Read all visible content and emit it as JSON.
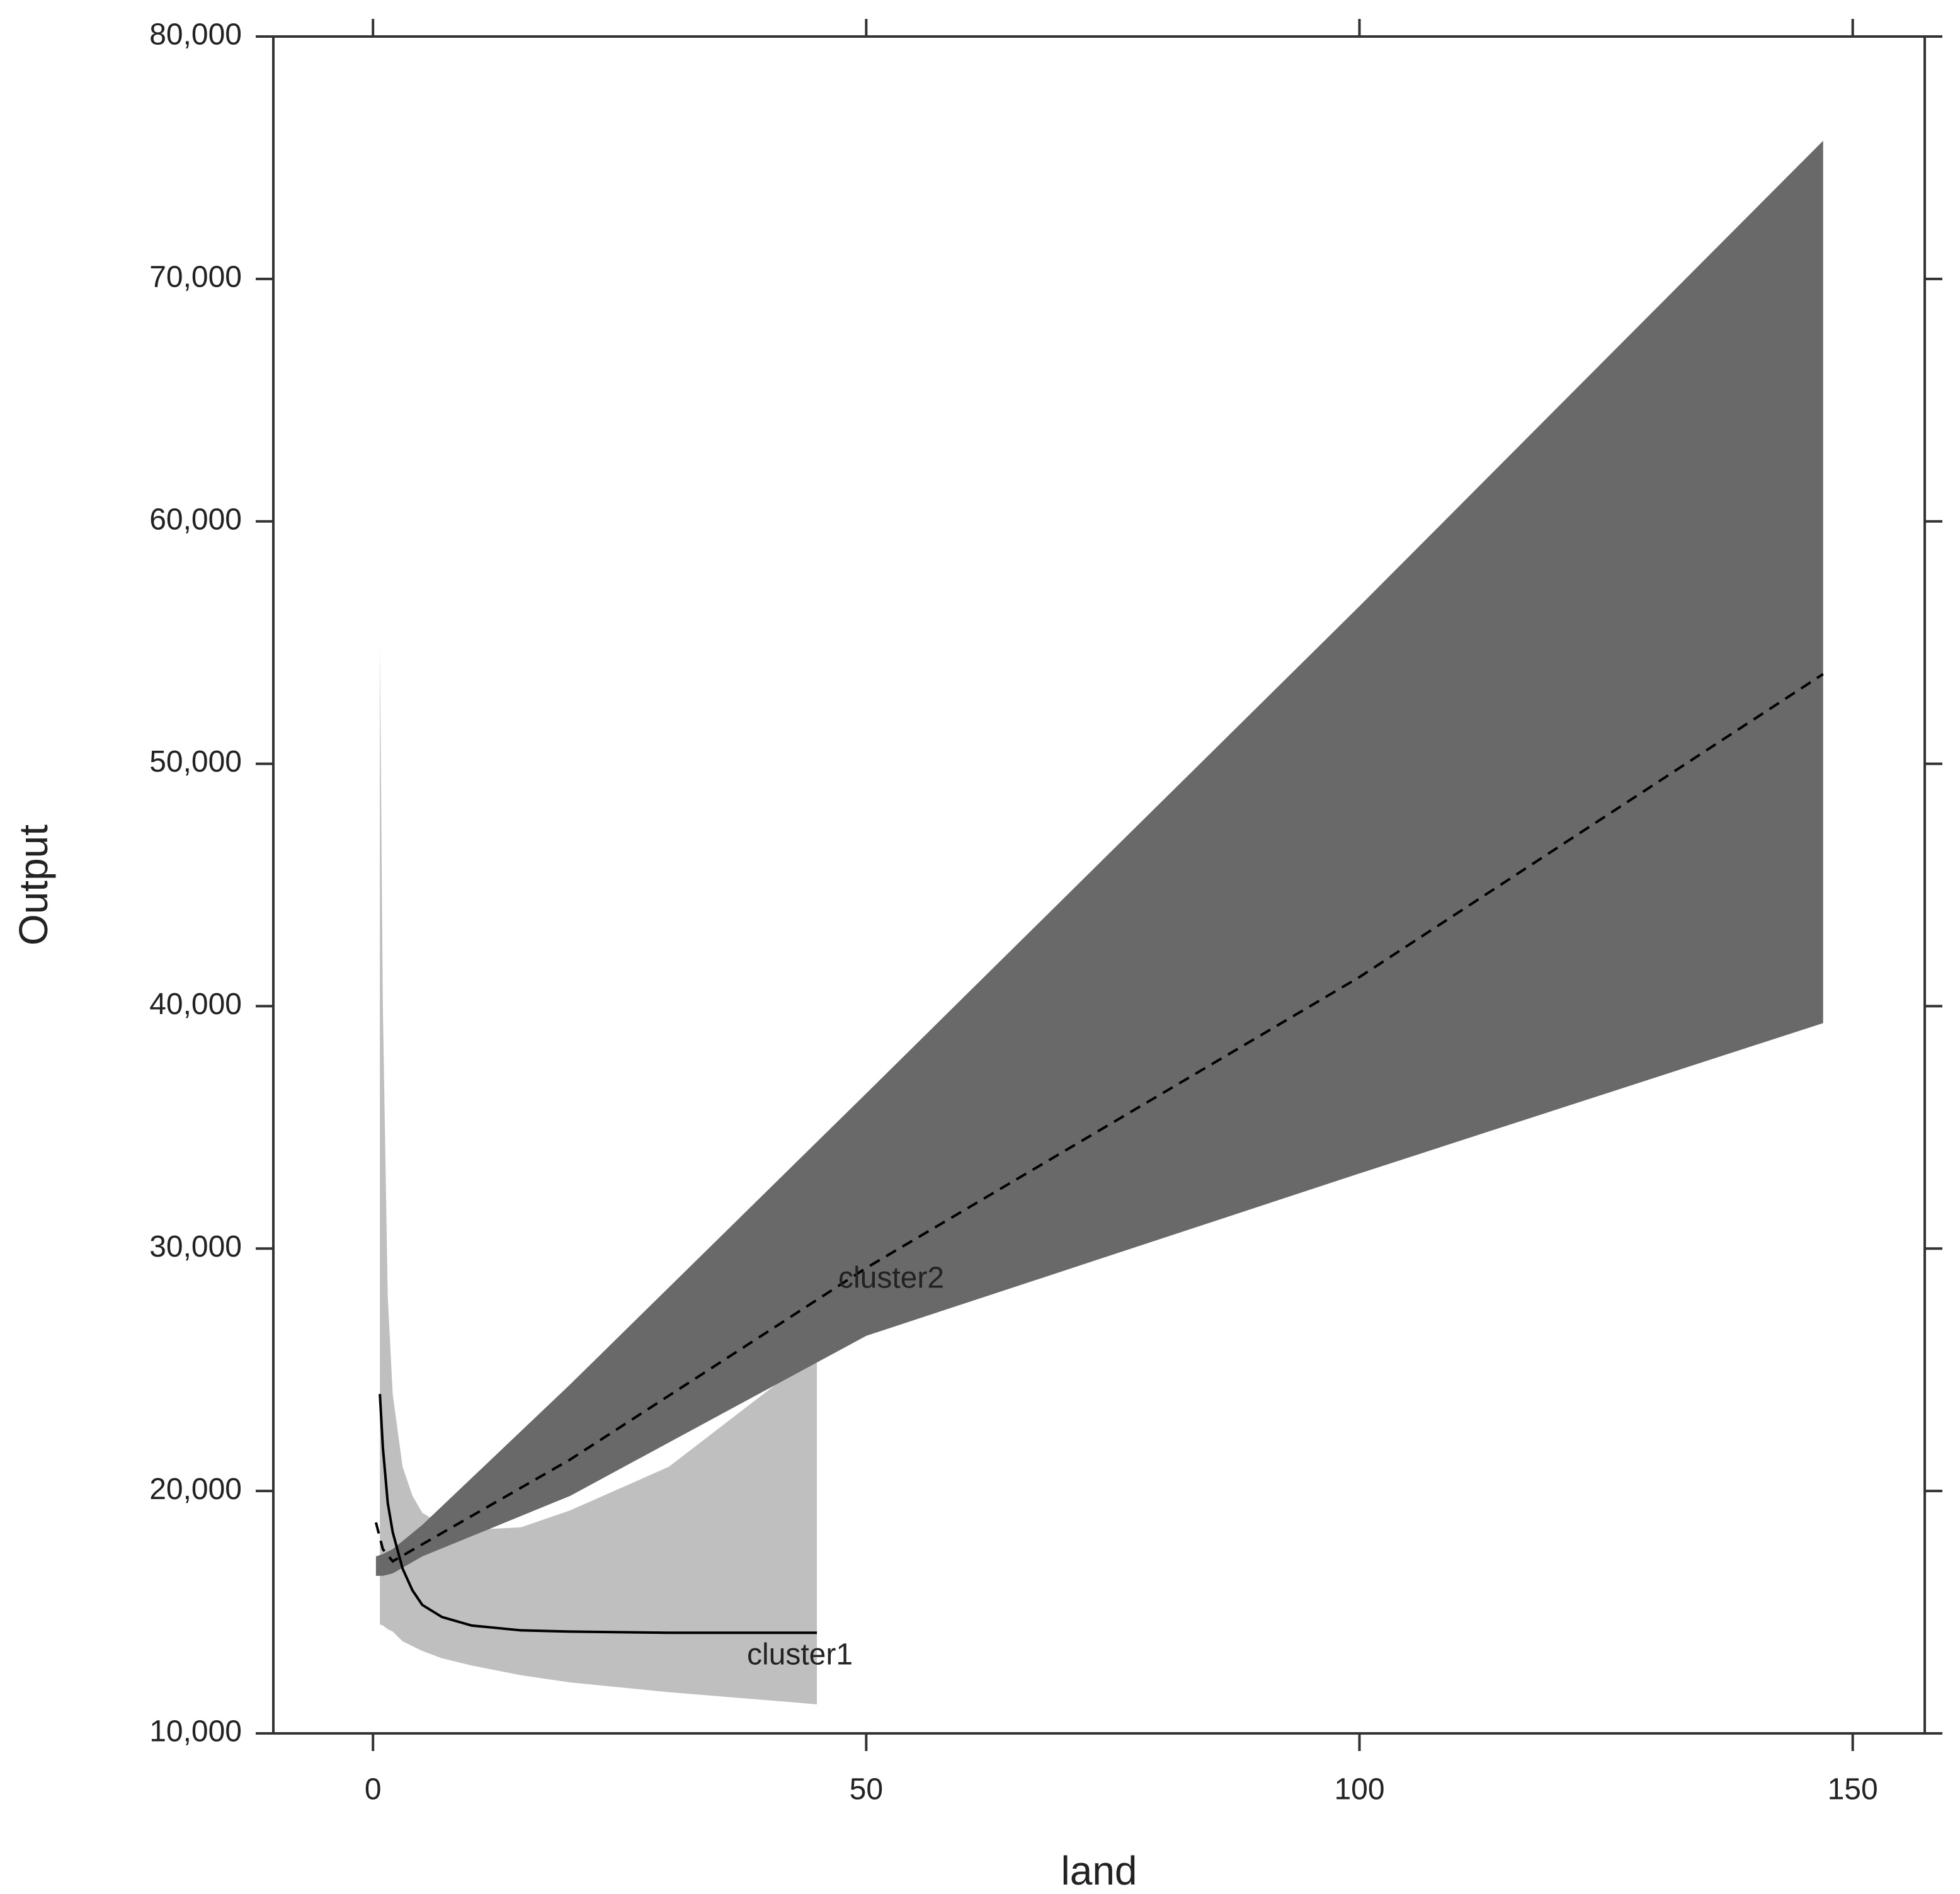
{
  "chart_data": {
    "type": "line",
    "x_label": "land",
    "y_label": "Output",
    "xlim": [
      -10.1,
      157.3
    ],
    "ylim": [
      10000,
      80000
    ],
    "xticks": [
      0,
      50,
      100,
      150
    ],
    "yticks": [
      {
        "value": 10000,
        "label": "10,000"
      },
      {
        "value": 20000,
        "label": "20,000"
      },
      {
        "value": 30000,
        "label": "30,000"
      },
      {
        "value": 40000,
        "label": "40,000"
      },
      {
        "value": 50000,
        "label": "50,000"
      },
      {
        "value": 60000,
        "label": "60,000"
      },
      {
        "value": 70000,
        "label": "70,000"
      },
      {
        "value": 80000,
        "label": "80,000"
      }
    ],
    "series": [
      {
        "name": "cluster1",
        "color": "#000000",
        "band_color": "#bfbfbf",
        "dashed": false,
        "x": [
          0.7,
          1,
          1.5,
          2,
          3,
          4,
          5,
          7,
          10,
          15,
          20,
          30,
          45
        ],
        "values": [
          24000,
          21800,
          19500,
          18300,
          16800,
          15900,
          15300,
          14800,
          14450,
          14250,
          14200,
          14150,
          14150
        ],
        "lower": [
          14500,
          14450,
          14300,
          14200,
          13800,
          13600,
          13400,
          13100,
          12800,
          12400,
          12100,
          11700,
          11200
        ],
        "upper": [
          55000,
          40000,
          28000,
          24000,
          21000,
          19800,
          19100,
          18600,
          18400,
          18500,
          19200,
          21000,
          25700
        ]
      },
      {
        "name": "cluster2",
        "color": "#000000",
        "band_color": "#696969",
        "dashed": true,
        "x": [
          0.3,
          1,
          2,
          5,
          20,
          50,
          100,
          147
        ],
        "values": [
          18700,
          17600,
          17100,
          17800,
          21300,
          29200,
          41200,
          53700
        ],
        "lower": [
          16500,
          16500,
          16600,
          17300,
          19800,
          26400,
          33100,
          39300
        ],
        "upper": [
          17300,
          17400,
          17600,
          18600,
          24400,
          36400,
          56500,
          75700
        ]
      }
    ]
  }
}
